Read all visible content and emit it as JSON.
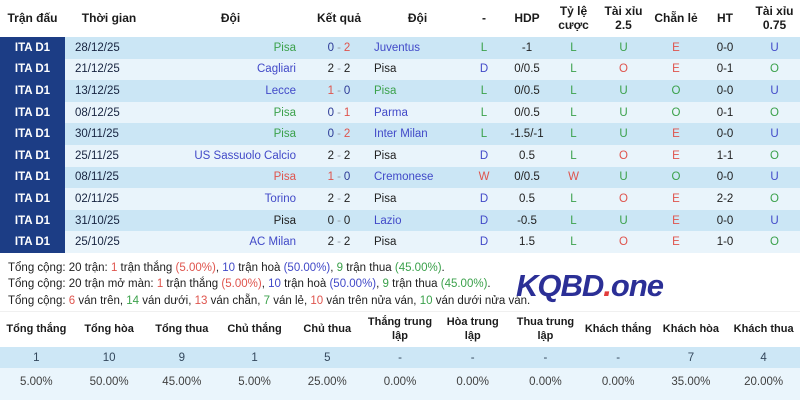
{
  "colors": {
    "league_badge_bg": "#1c3d85",
    "row_dark": "#cbe6f5",
    "row_light": "#e9f4fb",
    "win_red": "#df544d",
    "loss_green": "#3ba14b",
    "draw_blue": "#4149c8",
    "score_navy": "#2c3a96",
    "logo_navy": "#2b2f96",
    "logo_dot_red": "#e23b3b"
  },
  "main_table": {
    "headers": [
      "Trận đấu",
      "Thời gian",
      "Đội",
      "Kết quả",
      "Đội",
      "-",
      "HDP",
      "Tỷ lệ cược",
      "Tài xỉu 2.5",
      "Chẵn lẻ",
      "HT",
      "Tài xỉu 0.75"
    ],
    "rows": [
      {
        "league": "ITA D1",
        "date": "28/12/25",
        "home": "Pisa",
        "home_c": "green",
        "score_home": "0",
        "score_home_c": "navy",
        "score_away": "2",
        "score_away_c": "red",
        "away": "Juventus",
        "away_c": "blue",
        "result": "L",
        "result_c": "green",
        "hdp": "-1",
        "odds": "L",
        "odds_c": "green",
        "ou25": "U",
        "ou25_c": "green",
        "eo": "E",
        "eo_c": "red",
        "ht": "0-0",
        "ou075": "U",
        "ou075_c": "blue"
      },
      {
        "league": "ITA D1",
        "date": "21/12/25",
        "home": "Cagliari",
        "home_c": "blue",
        "score_home": "2",
        "score_home_c": "black",
        "score_away": "2",
        "score_away_c": "black",
        "away": "Pisa",
        "away_c": "black",
        "result": "D",
        "result_c": "blue",
        "hdp": "0/0.5",
        "odds": "L",
        "odds_c": "green",
        "ou25": "O",
        "ou25_c": "red",
        "eo": "E",
        "eo_c": "red",
        "ht": "0-1",
        "ou075": "O",
        "ou075_c": "green"
      },
      {
        "league": "ITA D1",
        "date": "13/12/25",
        "home": "Lecce",
        "home_c": "blue",
        "score_home": "1",
        "score_home_c": "red",
        "score_away": "0",
        "score_away_c": "navy",
        "away": "Pisa",
        "away_c": "green",
        "result": "L",
        "result_c": "green",
        "hdp": "0/0.5",
        "odds": "L",
        "odds_c": "green",
        "ou25": "U",
        "ou25_c": "green",
        "eo": "O",
        "eo_c": "green",
        "ht": "0-0",
        "ou075": "U",
        "ou075_c": "blue"
      },
      {
        "league": "ITA D1",
        "date": "08/12/25",
        "home": "Pisa",
        "home_c": "green",
        "score_home": "0",
        "score_home_c": "navy",
        "score_away": "1",
        "score_away_c": "red",
        "away": "Parma",
        "away_c": "blue",
        "result": "L",
        "result_c": "green",
        "hdp": "0/0.5",
        "odds": "L",
        "odds_c": "green",
        "ou25": "U",
        "ou25_c": "green",
        "eo": "O",
        "eo_c": "green",
        "ht": "0-1",
        "ou075": "O",
        "ou075_c": "green"
      },
      {
        "league": "ITA D1",
        "date": "30/11/25",
        "home": "Pisa",
        "home_c": "green",
        "score_home": "0",
        "score_home_c": "navy",
        "score_away": "2",
        "score_away_c": "red",
        "away": "Inter Milan",
        "away_c": "blue",
        "result": "L",
        "result_c": "green",
        "hdp": "-1.5/-1",
        "odds": "L",
        "odds_c": "green",
        "ou25": "U",
        "ou25_c": "green",
        "eo": "E",
        "eo_c": "red",
        "ht": "0-0",
        "ou075": "U",
        "ou075_c": "blue"
      },
      {
        "league": "ITA D1",
        "date": "25/11/25",
        "home": "US Sassuolo Calcio",
        "home_c": "blue",
        "score_home": "2",
        "score_home_c": "black",
        "score_away": "2",
        "score_away_c": "black",
        "away": "Pisa",
        "away_c": "black",
        "result": "D",
        "result_c": "blue",
        "hdp": "0.5",
        "odds": "L",
        "odds_c": "green",
        "ou25": "O",
        "ou25_c": "red",
        "eo": "E",
        "eo_c": "red",
        "ht": "1-1",
        "ou075": "O",
        "ou075_c": "green"
      },
      {
        "league": "ITA D1",
        "date": "08/11/25",
        "home": "Pisa",
        "home_c": "red",
        "score_home": "1",
        "score_home_c": "red",
        "score_away": "0",
        "score_away_c": "navy",
        "away": "Cremonese",
        "away_c": "blue",
        "result": "W",
        "result_c": "red",
        "hdp": "0/0.5",
        "odds": "W",
        "odds_c": "red",
        "ou25": "U",
        "ou25_c": "green",
        "eo": "O",
        "eo_c": "green",
        "ht": "0-0",
        "ou075": "U",
        "ou075_c": "blue"
      },
      {
        "league": "ITA D1",
        "date": "02/11/25",
        "home": "Torino",
        "home_c": "blue",
        "score_home": "2",
        "score_home_c": "black",
        "score_away": "2",
        "score_away_c": "black",
        "away": "Pisa",
        "away_c": "black",
        "result": "D",
        "result_c": "blue",
        "hdp": "0.5",
        "odds": "L",
        "odds_c": "green",
        "ou25": "O",
        "ou25_c": "red",
        "eo": "E",
        "eo_c": "red",
        "ht": "2-2",
        "ou075": "O",
        "ou075_c": "green"
      },
      {
        "league": "ITA D1",
        "date": "31/10/25",
        "home": "Pisa",
        "home_c": "black",
        "score_home": "0",
        "score_home_c": "black",
        "score_away": "0",
        "score_away_c": "black",
        "away": "Lazio",
        "away_c": "blue",
        "result": "D",
        "result_c": "blue",
        "hdp": "-0.5",
        "odds": "L",
        "odds_c": "green",
        "ou25": "U",
        "ou25_c": "green",
        "eo": "E",
        "eo_c": "red",
        "ht": "0-0",
        "ou075": "U",
        "ou075_c": "blue"
      },
      {
        "league": "ITA D1",
        "date": "25/10/25",
        "home": "AC Milan",
        "home_c": "blue",
        "score_home": "2",
        "score_home_c": "black",
        "score_away": "2",
        "score_away_c": "black",
        "away": "Pisa",
        "away_c": "black",
        "result": "D",
        "result_c": "blue",
        "hdp": "1.5",
        "odds": "L",
        "odds_c": "green",
        "ou25": "O",
        "ou25_c": "red",
        "eo": "E",
        "eo_c": "red",
        "ht": "1-0",
        "ou075": "O",
        "ou075_c": "green"
      }
    ]
  },
  "summary_lines": [
    {
      "segments": [
        {
          "t": "Tổng cộng: 20 trận: ",
          "c": "black"
        },
        {
          "t": "1",
          "c": "red"
        },
        {
          "t": " trận thắng ",
          "c": "black"
        },
        {
          "t": "(5.00%)",
          "c": "red"
        },
        {
          "t": ", ",
          "c": "black"
        },
        {
          "t": "10",
          "c": "blue"
        },
        {
          "t": " trận hoà ",
          "c": "black"
        },
        {
          "t": "(50.00%)",
          "c": "blue"
        },
        {
          "t": ", ",
          "c": "black"
        },
        {
          "t": "9",
          "c": "green"
        },
        {
          "t": " trận thua ",
          "c": "black"
        },
        {
          "t": "(45.00%)",
          "c": "green"
        },
        {
          "t": ".",
          "c": "black"
        }
      ]
    },
    {
      "segments": [
        {
          "t": "Tổng cộng: 20 trận mở màn: ",
          "c": "black"
        },
        {
          "t": "1",
          "c": "red"
        },
        {
          "t": " trận thắng ",
          "c": "black"
        },
        {
          "t": "(5.00%)",
          "c": "red"
        },
        {
          "t": ", ",
          "c": "black"
        },
        {
          "t": "10",
          "c": "blue"
        },
        {
          "t": " trận hoà ",
          "c": "black"
        },
        {
          "t": "(50.00%)",
          "c": "blue"
        },
        {
          "t": ", ",
          "c": "black"
        },
        {
          "t": "9",
          "c": "green"
        },
        {
          "t": " trận thua ",
          "c": "black"
        },
        {
          "t": "(45.00%)",
          "c": "green"
        },
        {
          "t": ".",
          "c": "black"
        }
      ]
    },
    {
      "segments": [
        {
          "t": "Tổng cộng: ",
          "c": "black"
        },
        {
          "t": "6",
          "c": "red"
        },
        {
          "t": " ván trên, ",
          "c": "black"
        },
        {
          "t": "14",
          "c": "green"
        },
        {
          "t": " ván dưới, ",
          "c": "black"
        },
        {
          "t": "13",
          "c": "red"
        },
        {
          "t": " ván chẵn, ",
          "c": "black"
        },
        {
          "t": "7",
          "c": "green"
        },
        {
          "t": " ván lẻ, ",
          "c": "black"
        },
        {
          "t": "10",
          "c": "red"
        },
        {
          "t": " ván trên nửa ván, ",
          "c": "black"
        },
        {
          "t": "10",
          "c": "green"
        },
        {
          "t": " ván dưới nửa ván.",
          "c": "black"
        }
      ]
    }
  ],
  "logo": {
    "brand": "KQBD",
    "dot": ".",
    "tld": "one"
  },
  "bottom_table": {
    "headers": [
      "Tổng thắng",
      "Tổng hòa",
      "Tổng thua",
      "Chủ thắng",
      "Chủ thua",
      "Thắng trung lập",
      "Hòa trung lập",
      "Thua trung lập",
      "Khách thắng",
      "Khách hòa",
      "Khách thua"
    ],
    "counts": [
      "1",
      "10",
      "9",
      "1",
      "5",
      "-",
      "-",
      "-",
      "-",
      "7",
      "4"
    ],
    "percents": [
      "5.00%",
      "50.00%",
      "45.00%",
      "5.00%",
      "25.00%",
      "0.00%",
      "0.00%",
      "0.00%",
      "0.00%",
      "35.00%",
      "20.00%"
    ]
  }
}
